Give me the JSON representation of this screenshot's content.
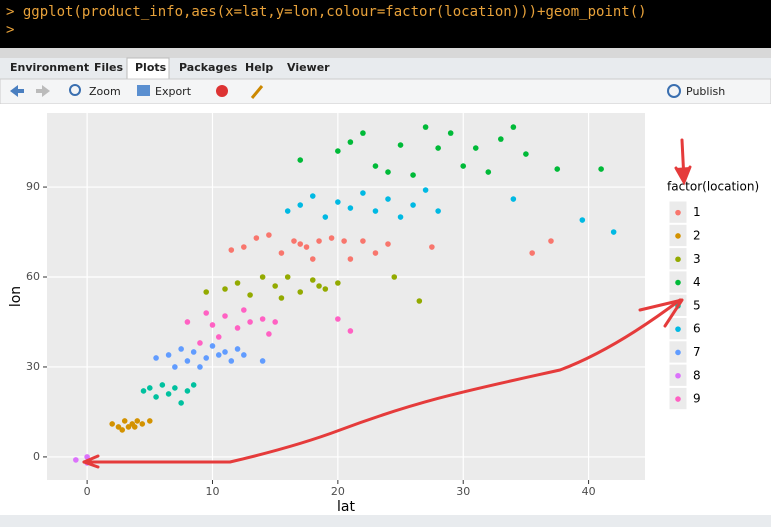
{
  "console": {
    "lines": [
      "> ggplot(product_info,aes(x=lat,y=lon,colour=factor(location)))+geom_point()",
      ">"
    ]
  },
  "tabs": [
    "Environment",
    "Files",
    "Plots",
    "Packages",
    "Help",
    "Viewer"
  ],
  "toolbar": [
    "Zoom",
    "Export",
    "Publish"
  ],
  "chart_data": {
    "type": "scatter",
    "x_label": "lat",
    "y_label": "lon",
    "legend_title": "factor(location)",
    "xlim": [
      -3.2,
      44.5
    ],
    "ylim": [
      -7.7,
      114.7
    ],
    "xticks": [
      0,
      10,
      20,
      30,
      40
    ],
    "yticks": [
      0,
      30,
      60,
      90
    ],
    "grid": true,
    "legend": "right",
    "series": [
      {
        "name": "1",
        "color": "#F8766D",
        "x": [
          11.5,
          12.5,
          13.5,
          14.5,
          15.5,
          16.5,
          17,
          17.5,
          18,
          18.5,
          19.5,
          20.5,
          21,
          22,
          23,
          24,
          27.5,
          35.5,
          37
        ],
        "values": [
          69,
          70,
          73,
          74,
          68,
          72,
          71,
          70,
          66,
          72,
          73,
          72,
          66,
          72,
          68,
          71,
          70,
          68,
          72
        ]
      },
      {
        "name": "2",
        "color": "#D39200",
        "x": [
          2,
          2.5,
          3,
          3.3,
          3.6,
          4,
          4.4,
          2.8,
          3.8,
          5
        ],
        "values": [
          11,
          10,
          12,
          10,
          11,
          12,
          11,
          9,
          10,
          12
        ]
      },
      {
        "name": "3",
        "color": "#93AA00",
        "x": [
          9.5,
          11,
          12,
          13,
          14,
          15,
          15.5,
          16,
          17,
          18,
          18.5,
          19,
          20,
          24.5,
          26.5
        ],
        "values": [
          55,
          56,
          58,
          54,
          60,
          57,
          53,
          60,
          55,
          59,
          57,
          56,
          58,
          60,
          52
        ]
      },
      {
        "name": "4",
        "color": "#00BA38",
        "x": [
          17,
          20,
          21,
          22,
          23,
          24,
          25,
          26,
          27,
          28,
          29,
          30,
          31,
          32,
          33,
          34,
          35,
          37.5,
          41
        ],
        "values": [
          99,
          102,
          105,
          108,
          97,
          95,
          104,
          94,
          110,
          103,
          108,
          97,
          103,
          95,
          106,
          110,
          101,
          96,
          96
        ]
      },
      {
        "name": "5",
        "color": "#00C19F",
        "x": [
          4.5,
          5,
          5.5,
          6,
          6.5,
          7,
          7.5,
          8,
          8.5
        ],
        "values": [
          22,
          23,
          20,
          24,
          21,
          23,
          18,
          22,
          24
        ]
      },
      {
        "name": "6",
        "color": "#00B9E3",
        "x": [
          16,
          17,
          18,
          19,
          20,
          21,
          22,
          23,
          24,
          25,
          26,
          27,
          28,
          34,
          39.5,
          42
        ],
        "values": [
          82,
          84,
          87,
          80,
          85,
          83,
          88,
          82,
          86,
          80,
          84,
          89,
          82,
          86,
          79,
          75
        ]
      },
      {
        "name": "7",
        "color": "#619CFF",
        "x": [
          5.5,
          6.5,
          7,
          7.5,
          8,
          8.5,
          9,
          9.5,
          10,
          10.5,
          11,
          11.5,
          12,
          12.5,
          14
        ],
        "values": [
          33,
          34,
          30,
          36,
          32,
          35,
          30,
          33,
          37,
          34,
          35,
          32,
          36,
          34,
          32
        ]
      },
      {
        "name": "8",
        "color": "#DB72FB",
        "x": [
          -0.9,
          0,
          0
        ],
        "values": [
          -1,
          0,
          -2
        ]
      },
      {
        "name": "9",
        "color": "#FF61C3",
        "x": [
          8,
          9,
          9.5,
          10,
          10.5,
          11,
          12,
          12.5,
          13,
          14,
          14.5,
          15,
          20,
          21
        ],
        "values": [
          45,
          38,
          48,
          44,
          40,
          47,
          43,
          49,
          45,
          46,
          41,
          45,
          46,
          42
        ]
      }
    ]
  }
}
